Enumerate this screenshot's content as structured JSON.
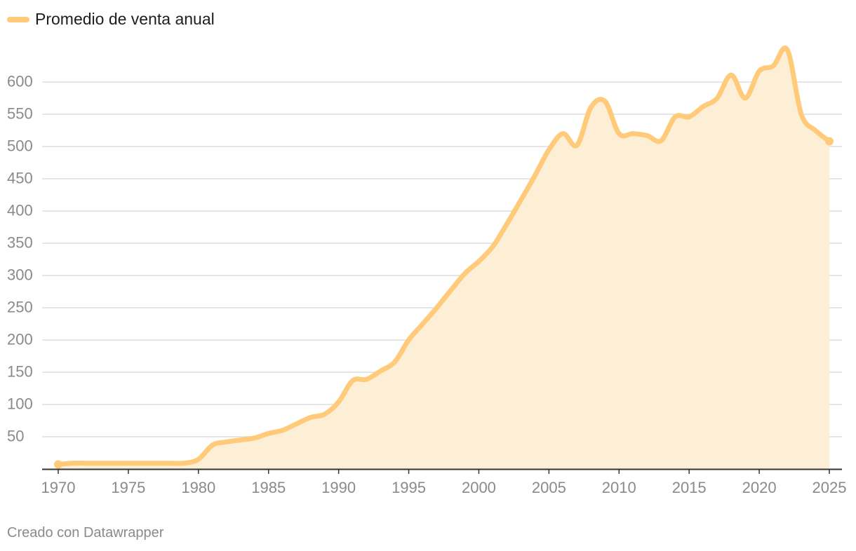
{
  "legend": {
    "label": "Promedio de venta anual",
    "color": "#ffcb7a"
  },
  "credit": "Creado con Datawrapper",
  "colors": {
    "line": "#ffcb7a",
    "area": "#fdeed6",
    "grid": "#dedede",
    "axis": "#333333",
    "tick": "#8a8a8a"
  },
  "chart_data": {
    "type": "area",
    "title": "",
    "xlabel": "",
    "ylabel": "",
    "grid": true,
    "legend_position": "top-left",
    "xlim": [
      1970,
      2025
    ],
    "ylim": [
      0,
      600
    ],
    "x_ticks": [
      1970,
      1975,
      1980,
      1985,
      1990,
      1995,
      2000,
      2005,
      2010,
      2015,
      2020,
      2025
    ],
    "y_ticks": [
      50,
      100,
      150,
      200,
      250,
      300,
      350,
      400,
      450,
      500,
      550,
      600
    ],
    "series": [
      {
        "name": "Promedio de venta anual",
        "x": [
          1970,
          1971,
          1972,
          1973,
          1974,
          1975,
          1976,
          1977,
          1978,
          1979,
          1980,
          1981,
          1982,
          1983,
          1984,
          1985,
          1986,
          1987,
          1988,
          1989,
          1990,
          1991,
          1992,
          1993,
          1994,
          1995,
          1996,
          1997,
          1998,
          1999,
          2000,
          2001,
          2002,
          2003,
          2004,
          2005,
          2006,
          2007,
          2008,
          2009,
          2010,
          2011,
          2012,
          2013,
          2014,
          2015,
          2016,
          2017,
          2018,
          2019,
          2020,
          2021,
          2022,
          2023,
          2024,
          2025
        ],
        "values": [
          7,
          9,
          9,
          9,
          9,
          9,
          9,
          9,
          9,
          9,
          15,
          37,
          42,
          45,
          48,
          55,
          60,
          70,
          80,
          85,
          104,
          137,
          139,
          152,
          166,
          200,
          225,
          250,
          277,
          303,
          322,
          345,
          380,
          417,
          455,
          495,
          520,
          502,
          561,
          570,
          520,
          520,
          517,
          509,
          546,
          546,
          562,
          575,
          611,
          575,
          617,
          625,
          650,
          550,
          525,
          508
        ]
      }
    ]
  }
}
